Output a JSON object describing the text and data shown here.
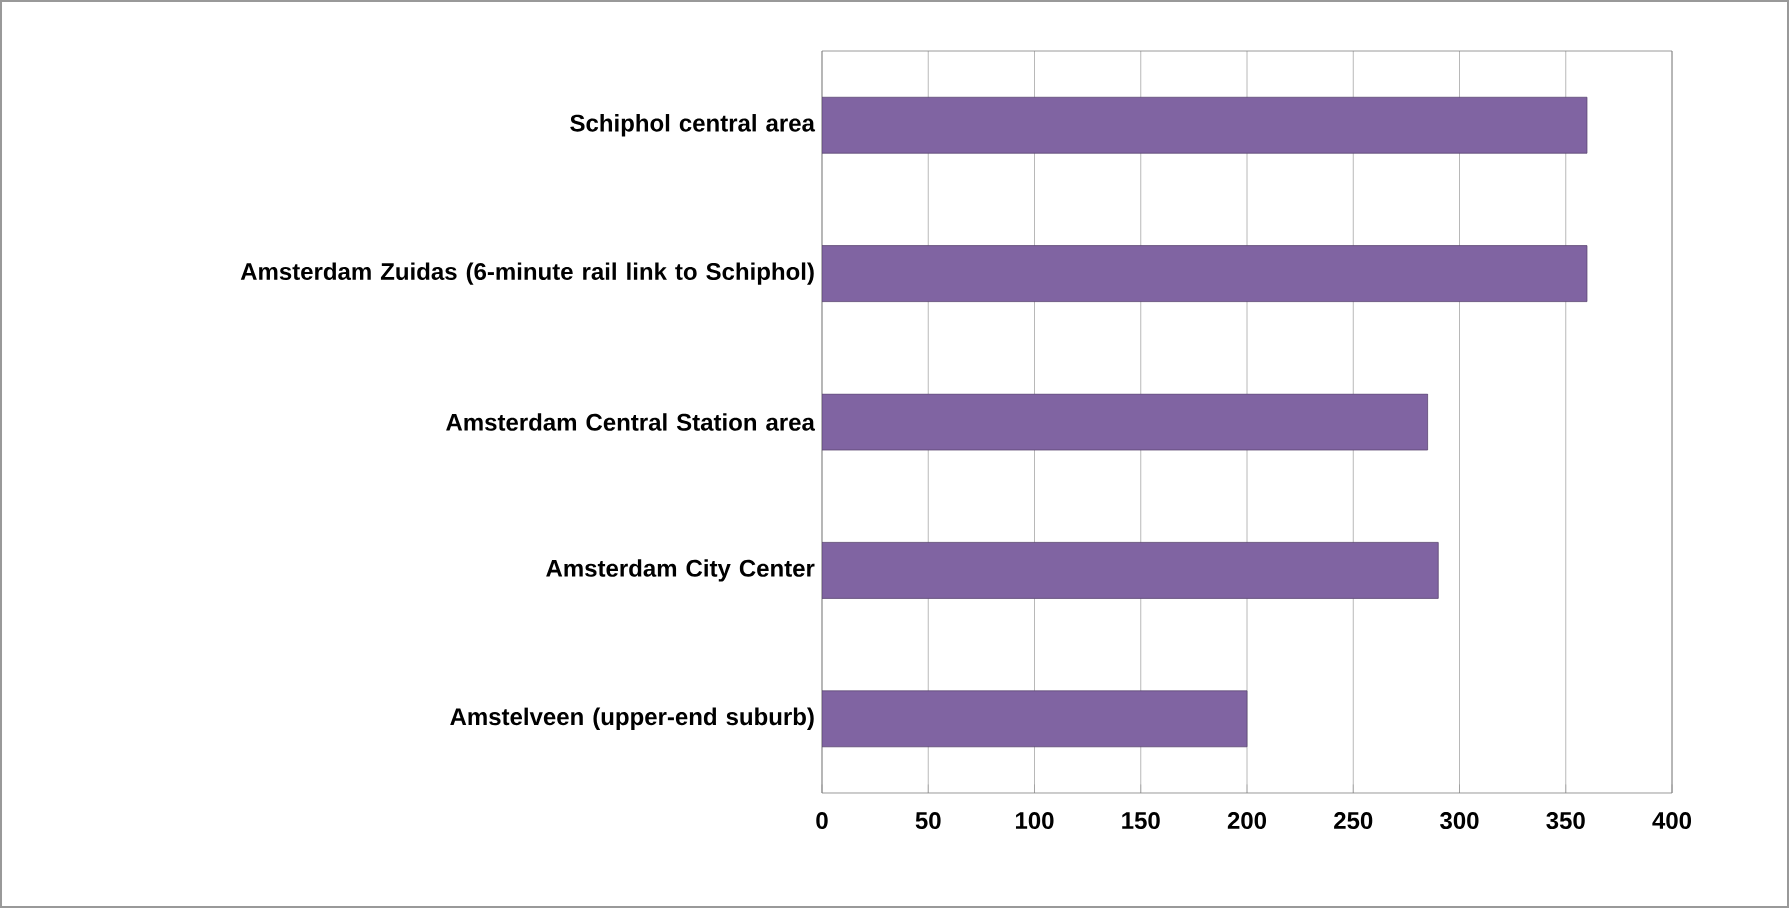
{
  "chart_data": {
    "type": "bar",
    "orientation": "horizontal",
    "categories": [
      "Schiphol central area",
      "Amsterdam Zuidas (6-minute rail link to Schiphol)",
      "Amsterdam Central Station area",
      "Amsterdam City Center",
      "Amstelveen (upper-end suburb)"
    ],
    "values": [
      360,
      360,
      285,
      290,
      200
    ],
    "color": "#8064a2",
    "xlim": [
      0,
      400
    ],
    "xticks": [
      0,
      50,
      100,
      150,
      200,
      250,
      300,
      350,
      400
    ],
    "grid": "x"
  }
}
